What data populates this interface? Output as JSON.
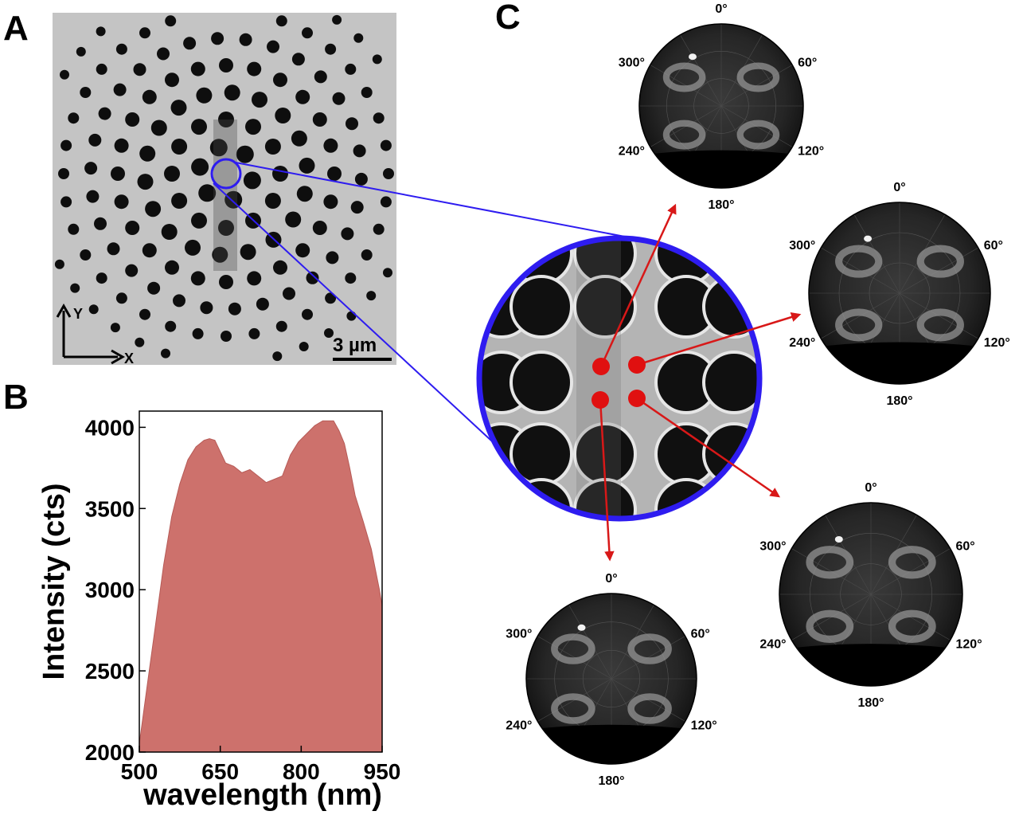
{
  "panels": {
    "a": "A",
    "b": "B",
    "c": "C"
  },
  "sem": {
    "scale_bar": "3 µm",
    "axis_x": "X",
    "axis_y": "Y"
  },
  "colors": {
    "magnifier": "#2e1cf0",
    "arrow": "#d81818",
    "dot": "#e01010",
    "spectrum_fill": "#cd716c",
    "spectrum_edge": "#b65a56"
  },
  "polar_labels": {
    "top": "0°",
    "upper_right": "60°",
    "lower_right": "120°",
    "bottom": "180°",
    "lower_left": "240°",
    "upper_left": "300°"
  },
  "chart_data": {
    "type": "area",
    "xlabel": "wavelength (nm)",
    "ylabel": "Intensity (cts)",
    "xlim": [
      500,
      950
    ],
    "ylim": [
      2000,
      4100
    ],
    "xticks": [
      500,
      650,
      800,
      950
    ],
    "yticks": [
      2000,
      2500,
      3000,
      3500,
      4000
    ],
    "x": [
      500,
      515,
      530,
      545,
      560,
      575,
      590,
      605,
      620,
      630,
      640,
      650,
      660,
      675,
      690,
      705,
      720,
      735,
      750,
      765,
      780,
      795,
      810,
      825,
      840,
      850,
      860,
      870,
      880,
      890,
      900,
      915,
      930,
      945,
      950
    ],
    "y": [
      2050,
      2420,
      2780,
      3150,
      3450,
      3650,
      3800,
      3880,
      3920,
      3930,
      3920,
      3850,
      3780,
      3760,
      3720,
      3740,
      3700,
      3660,
      3680,
      3700,
      3830,
      3910,
      3960,
      4010,
      4040,
      4040,
      4040,
      3980,
      3900,
      3750,
      3580,
      3420,
      3250,
      3000,
      2900
    ]
  }
}
